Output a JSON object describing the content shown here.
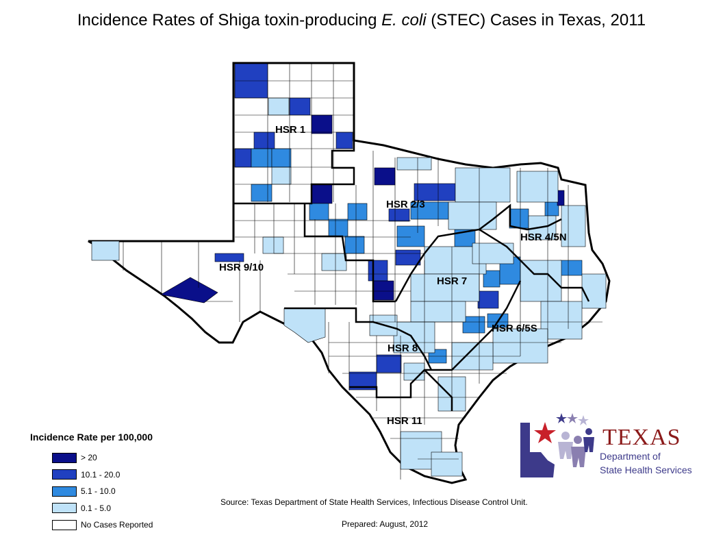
{
  "title": {
    "prefix": "Incidence Rates of Shiga toxin-producing ",
    "italic": "E. coli",
    "suffix": " (STEC) Cases in Texas, 2011"
  },
  "regions": [
    {
      "label": "HSR 1",
      "key": "hsr1"
    },
    {
      "label": "HSR 2/3",
      "key": "hsr23"
    },
    {
      "label": "HSR 4/5N",
      "key": "hsr45n"
    },
    {
      "label": "HSR 9/10",
      "key": "hsr910"
    },
    {
      "label": "HSR 7",
      "key": "hsr7"
    },
    {
      "label": "HSR 6/5S",
      "key": "hsr65s"
    },
    {
      "label": "HSR 8",
      "key": "hsr8"
    },
    {
      "label": "HSR 11",
      "key": "hsr11"
    }
  ],
  "legend": {
    "title": "Incidence Rate per 100,000",
    "items": [
      {
        "label": "> 20",
        "color": "#0a0f8a"
      },
      {
        "label": "10.1 - 20.0",
        "color": "#2040c0"
      },
      {
        "label": "5.1 - 10.0",
        "color": "#2f8ae0"
      },
      {
        "label": "0.1 - 5.0",
        "color": "#bfe2f8"
      },
      {
        "label": "No Cases Reported",
        "color": "#ffffff"
      }
    ]
  },
  "source": "Source: Texas Department of State Health Services, Infectious Disease Control Unit.",
  "prepared": "Prepared: August, 2012",
  "logo": {
    "word": "TEXAS",
    "line1": "Department of",
    "line2": "State Health Services"
  }
}
